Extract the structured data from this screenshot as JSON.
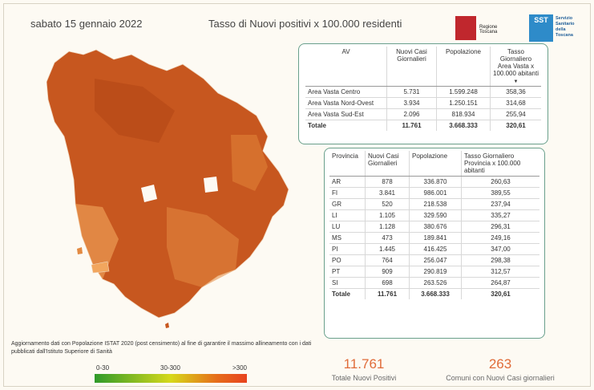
{
  "header": {
    "date": "sabato 15 gennaio 2022",
    "title": "Tasso di Nuovi positivi x 100.000 residenti",
    "logo_regione": "Regione Toscana",
    "logo_sst_mark": "SST",
    "logo_sst_text": "Servizio Sanitario della Toscana"
  },
  "area_table": {
    "headers": [
      "AV",
      "Nuovi Casi Giornalieri",
      "Popolazione",
      "Tasso Giornaliero Area Vasta x 100.000 abitanti"
    ],
    "rows": [
      [
        "Area Vasta Centro",
        "5.731",
        "1.599.248",
        "358,36"
      ],
      [
        "Area Vasta Nord-Ovest",
        "3.934",
        "1.250.151",
        "314,68"
      ],
      [
        "Area Vasta Sud-Est",
        "2.096",
        "818.934",
        "255,94"
      ]
    ],
    "total": [
      "Totale",
      "11.761",
      "3.668.333",
      "320,61"
    ]
  },
  "province_table": {
    "headers": [
      "Provincia",
      "Nuovi Casi Giornalieri",
      "Popolazione",
      "Tasso Giornaliero Provincia x 100.000 abitanti"
    ],
    "rows": [
      [
        "AR",
        "878",
        "336.870",
        "260,63"
      ],
      [
        "FI",
        "3.841",
        "986.001",
        "389,55"
      ],
      [
        "GR",
        "520",
        "218.538",
        "237,94"
      ],
      [
        "LI",
        "1.105",
        "329.590",
        "335,27"
      ],
      [
        "LU",
        "1.128",
        "380.676",
        "296,31"
      ],
      [
        "MS",
        "473",
        "189.841",
        "249,16"
      ],
      [
        "PI",
        "1.445",
        "416.425",
        "347,00"
      ],
      [
        "PO",
        "764",
        "256.047",
        "298,38"
      ],
      [
        "PT",
        "909",
        "290.819",
        "312,57"
      ],
      [
        "SI",
        "698",
        "263.526",
        "264,87"
      ]
    ],
    "total": [
      "Totale",
      "11.761",
      "3.668.333",
      "320,61"
    ]
  },
  "note": "Aggiornamento dati con Popolazione ISTAT 2020 (post censimento) al fine di garantire il massimo allineamento con i dati pubblicati dall'Istituto Superiore di Sanità",
  "legend": {
    "low": "0-30",
    "mid": "30-300",
    "high": ">300"
  },
  "kpis": {
    "total_value": "11.761",
    "total_caption": "Totale Nuovi Positivi",
    "comuni_value": "263",
    "comuni_caption": "Comuni con Nuovi Casi giornalieri"
  },
  "colors": {
    "accent": "#e06c3a",
    "border": "#6aa08c",
    "map_dark": "#c2541e",
    "map_light": "#f2a65e"
  }
}
